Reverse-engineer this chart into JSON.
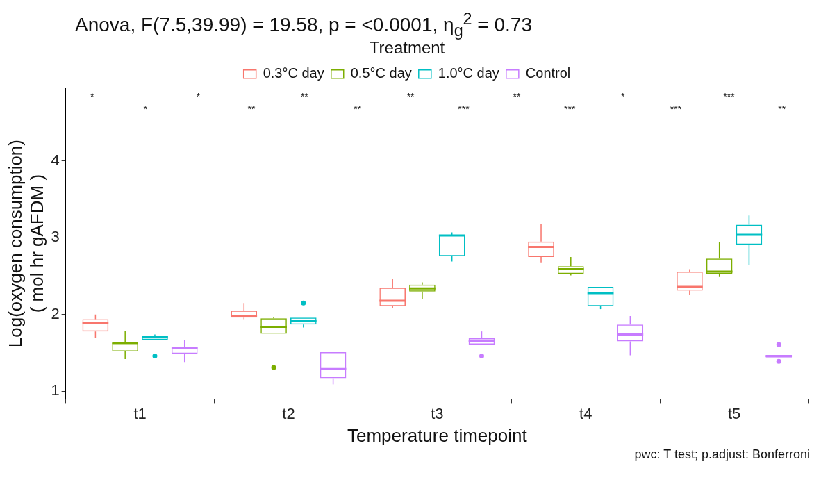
{
  "chart_data": {
    "type": "box",
    "title": "Anova, F(7.5,39.99) = 19.58, p = <0.0001, η$_{g}$$^{2}$ = 0.73",
    "xlabel": "Temperature timepoint",
    "ylabel": "Log(oxygen consumption)\n( mol hr gAFDM )",
    "legend_title": "Treatment",
    "legend": "top",
    "grid": false,
    "categories": [
      "t1",
      "t2",
      "t3",
      "t4",
      "t5"
    ],
    "ylim": [
      0.9,
      4.95
    ],
    "yticks": [
      1,
      2,
      3,
      4
    ],
    "series": [
      {
        "name": "0.3°C day",
        "color": "#f8766d",
        "boxes": [
          {
            "low": 1.69,
            "q1": 1.78,
            "median": 1.89,
            "q3": 1.94,
            "high": 2.0
          },
          {
            "low": 1.94,
            "q1": 1.96,
            "median": 1.98,
            "q3": 2.05,
            "high": 2.15
          },
          {
            "low": 2.08,
            "q1": 2.11,
            "median": 2.18,
            "q3": 2.35,
            "high": 2.47
          },
          {
            "low": 2.68,
            "q1": 2.75,
            "median": 2.88,
            "q3": 2.95,
            "high": 3.18
          },
          {
            "low": 2.26,
            "q1": 2.31,
            "median": 2.36,
            "q3": 2.56,
            "high": 2.59
          }
        ]
      },
      {
        "name": "0.5°C day",
        "color": "#7cae00",
        "boxes": [
          {
            "low": 1.42,
            "q1": 1.52,
            "median": 1.63,
            "q3": 1.63,
            "high": 1.79
          },
          {
            "low": 1.75,
            "q1": 1.75,
            "median": 1.84,
            "q3": 1.95,
            "high": 1.97,
            "outliers": [
              1.31
            ]
          },
          {
            "low": 2.2,
            "q1": 2.3,
            "median": 2.34,
            "q3": 2.39,
            "high": 2.42
          },
          {
            "low": 2.51,
            "q1": 2.53,
            "median": 2.59,
            "q3": 2.63,
            "high": 2.75
          },
          {
            "low": 2.49,
            "q1": 2.53,
            "median": 2.56,
            "q3": 2.73,
            "high": 2.94
          }
        ]
      },
      {
        "name": "1.0°C day",
        "color": "#00bfc4",
        "boxes": [
          {
            "low": 1.67,
            "q1": 1.67,
            "median": 1.71,
            "q3": 1.72,
            "high": 1.74,
            "outliers": [
              1.46
            ]
          },
          {
            "low": 1.83,
            "q1": 1.87,
            "median": 1.92,
            "q3": 1.96,
            "high": 1.96,
            "outliers": [
              2.15
            ]
          },
          {
            "low": 2.69,
            "q1": 2.76,
            "median": 3.03,
            "q3": 3.04,
            "high": 3.07
          },
          {
            "low": 2.07,
            "q1": 2.11,
            "median": 2.28,
            "q3": 2.36,
            "high": 2.36
          },
          {
            "low": 2.65,
            "q1": 2.91,
            "median": 3.04,
            "q3": 3.17,
            "high": 3.29
          }
        ]
      },
      {
        "name": "Control",
        "color": "#c77cff",
        "boxes": [
          {
            "low": 1.38,
            "q1": 1.49,
            "median": 1.56,
            "q3": 1.58,
            "high": 1.67
          },
          {
            "low": 1.09,
            "q1": 1.17,
            "median": 1.29,
            "q3": 1.51,
            "high": 1.51
          },
          {
            "low": 1.61,
            "q1": 1.61,
            "median": 1.66,
            "q3": 1.69,
            "high": 1.78,
            "outliers": [
              1.46
            ]
          },
          {
            "low": 1.47,
            "q1": 1.65,
            "median": 1.74,
            "q3": 1.87,
            "high": 1.98
          },
          {
            "low": 1.44,
            "q1": 1.44,
            "median": 1.46,
            "q3": 1.47,
            "high": 1.47,
            "outliers": [
              1.61,
              1.39
            ]
          }
        ]
      }
    ],
    "annotations": [
      "*",
      "*",
      "*",
      "**",
      "**",
      "**",
      "**",
      "***",
      "**",
      "***",
      "*",
      "***",
      "***",
      "**",
      "pwc: T test; p.adjust: Bonferroni"
    ]
  }
}
